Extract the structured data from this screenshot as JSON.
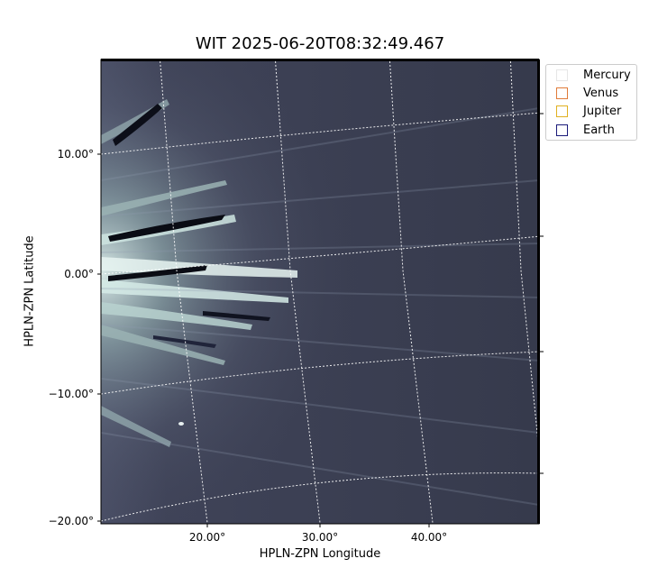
{
  "title": "WIT 2025-06-20T08:32:49.467",
  "axes": {
    "xlabel": "HPLN-ZPN Longitude",
    "ylabel": "HPLN-ZPN Latitude",
    "xticks": [
      "20.00°",
      "30.00°",
      "40.00°"
    ],
    "yticks": [
      "10.00°",
      "0.00°",
      "−10.00°",
      "−20.00°"
    ]
  },
  "legend": {
    "items": [
      {
        "label": "Mercury",
        "color": "#e6e6e6"
      },
      {
        "label": "Venus",
        "color": "#e07b39"
      },
      {
        "label": "Jupiter",
        "color": "#e0b020"
      },
      {
        "label": "Earth",
        "color": "#1a1a7a"
      }
    ]
  },
  "colors": {
    "background": "#3a3d50",
    "streamer": "#b8d8d4",
    "grid": "#ffffff"
  }
}
